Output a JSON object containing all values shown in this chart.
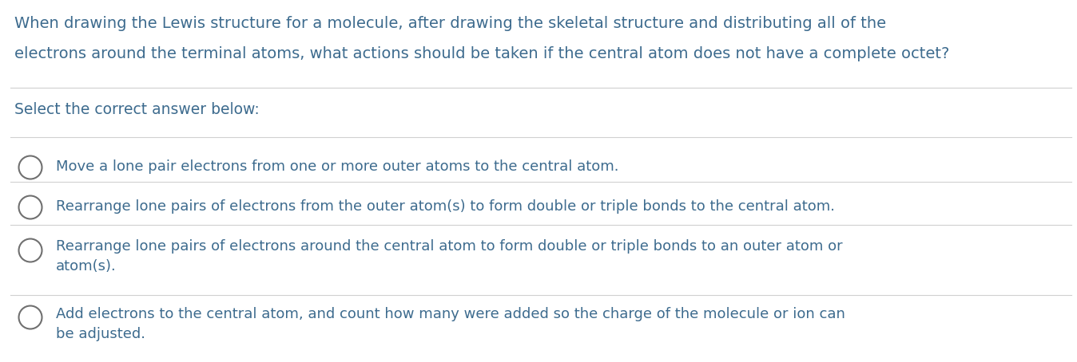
{
  "background_color": "#ffffff",
  "question_text_line1": "When drawing the Lewis structure for a molecule, after drawing the skeletal structure and distributing all of the",
  "question_text_line2": "electrons around the terminal atoms, what actions should be taken if the central atom does not have a complete octet?",
  "question_color": "#3d6b8e",
  "select_text": "Select the correct answer below:",
  "select_color": "#3d6b8e",
  "answers": [
    "Move a lone pair electrons from one or more outer atoms to the central atom.",
    "Rearrange lone pairs of electrons from the outer atom(s) to form double or triple bonds to the central atom.",
    "Rearrange lone pairs of electrons around the central atom to form double or triple bonds to an outer atom or\natom(s).",
    "Add electrons to the central atom, and count how many were added so the charge of the molecule or ion can\nbe adjusted."
  ],
  "answer_color": "#3d6b8e",
  "divider_color": "#d0d0d0",
  "circle_edge_color": "#707070",
  "font_size_question": 14.0,
  "font_size_select": 13.5,
  "font_size_answer": 13.0,
  "fig_width": 13.48,
  "fig_height": 4.54,
  "dpi": 100
}
